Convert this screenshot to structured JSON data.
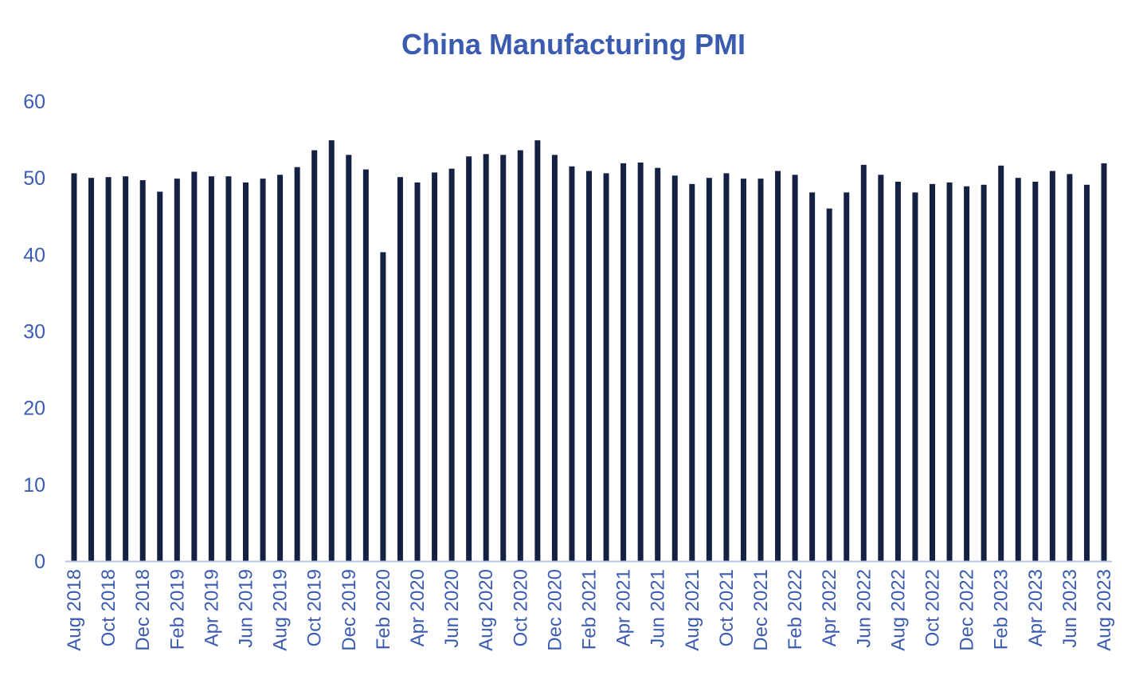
{
  "colors": {
    "bar": "#152142",
    "text": "#3a5bb0",
    "axis": "#b8c4e4"
  },
  "chart_data": {
    "type": "bar",
    "title": "China Manufacturing PMI",
    "xlabel": "",
    "ylabel": "",
    "ylim": [
      0,
      60
    ],
    "yticks": [
      0,
      10,
      20,
      30,
      40,
      50,
      60
    ],
    "grid": false,
    "legend": "none",
    "categories": [
      "Aug 2018",
      "Sep 2018",
      "Oct 2018",
      "Nov 2018",
      "Dec 2018",
      "Jan 2019",
      "Feb 2019",
      "Mar 2019",
      "Apr 2019",
      "May 2019",
      "Jun 2019",
      "Jul 2019",
      "Aug 2019",
      "Sep 2019",
      "Oct 2019",
      "Nov 2019",
      "Dec 2019",
      "Jan 2020",
      "Feb 2020",
      "Mar 2020",
      "Apr 2020",
      "May 2020",
      "Jun 2020",
      "Jul 2020",
      "Aug 2020",
      "Sep 2020",
      "Oct 2020",
      "Nov 2020",
      "Dec 2020",
      "Jan 2021",
      "Feb 2021",
      "Mar 2021",
      "Apr 2021",
      "May 2021",
      "Jun 2021",
      "Jul 2021",
      "Aug 2021",
      "Sep 2021",
      "Oct 2021",
      "Nov 2021",
      "Dec 2021",
      "Jan 2022",
      "Feb 2022",
      "Mar 2022",
      "Apr 2022",
      "May 2022",
      "Jun 2022",
      "Jul 2022",
      "Aug 2022",
      "Sep 2022",
      "Oct 2022",
      "Nov 2022",
      "Dec 2022",
      "Jan 2023",
      "Feb 2023",
      "Mar 2023",
      "Apr 2023",
      "May 2023",
      "Jun 2023",
      "Jul 2023",
      "Aug 2023"
    ],
    "tick_labels": [
      "Aug 2018",
      "",
      "Oct 2018",
      "",
      "Dec 2018",
      "",
      "Feb 2019",
      "",
      "Apr 2019",
      "",
      "Jun 2019",
      "",
      "Aug 2019",
      "",
      "Oct 2019",
      "",
      "Dec 2019",
      "",
      "Feb 2020",
      "",
      "Apr 2020",
      "",
      "Jun 2020",
      "",
      "Aug 2020",
      "",
      "Oct 2020",
      "",
      "Dec 2020",
      "",
      "Feb 2021",
      "",
      "Apr 2021",
      "",
      "Jun 2021",
      "",
      "Aug 2021",
      "",
      "Oct 2021",
      "",
      "Dec 2021",
      "",
      "Feb 2022",
      "",
      "Apr 2022",
      "",
      "Jun 2022",
      "",
      "Aug 2022",
      "",
      "Oct 2022",
      "",
      "Dec 2022",
      "",
      "Feb 2023",
      "",
      "Apr 2023",
      "",
      "Jun 2023",
      "",
      "Aug 2023"
    ],
    "values": [
      50.6,
      50.0,
      50.1,
      50.2,
      49.7,
      48.2,
      49.9,
      50.8,
      50.2,
      50.2,
      49.4,
      49.9,
      50.4,
      51.4,
      53.6,
      54.9,
      53.0,
      51.1,
      40.3,
      50.1,
      49.4,
      50.7,
      51.2,
      52.8,
      53.1,
      53.0,
      53.6,
      54.9,
      53.0,
      51.5,
      50.9,
      50.6,
      51.9,
      52.0,
      51.3,
      50.3,
      49.2,
      50.0,
      50.6,
      49.9,
      49.9,
      50.9,
      50.4,
      48.1,
      46.0,
      48.1,
      51.7,
      50.4,
      49.5,
      48.1,
      49.2,
      49.4,
      48.9,
      49.1,
      51.6,
      50.0,
      49.5,
      50.9,
      50.5,
      49.1,
      51.9
    ]
  }
}
